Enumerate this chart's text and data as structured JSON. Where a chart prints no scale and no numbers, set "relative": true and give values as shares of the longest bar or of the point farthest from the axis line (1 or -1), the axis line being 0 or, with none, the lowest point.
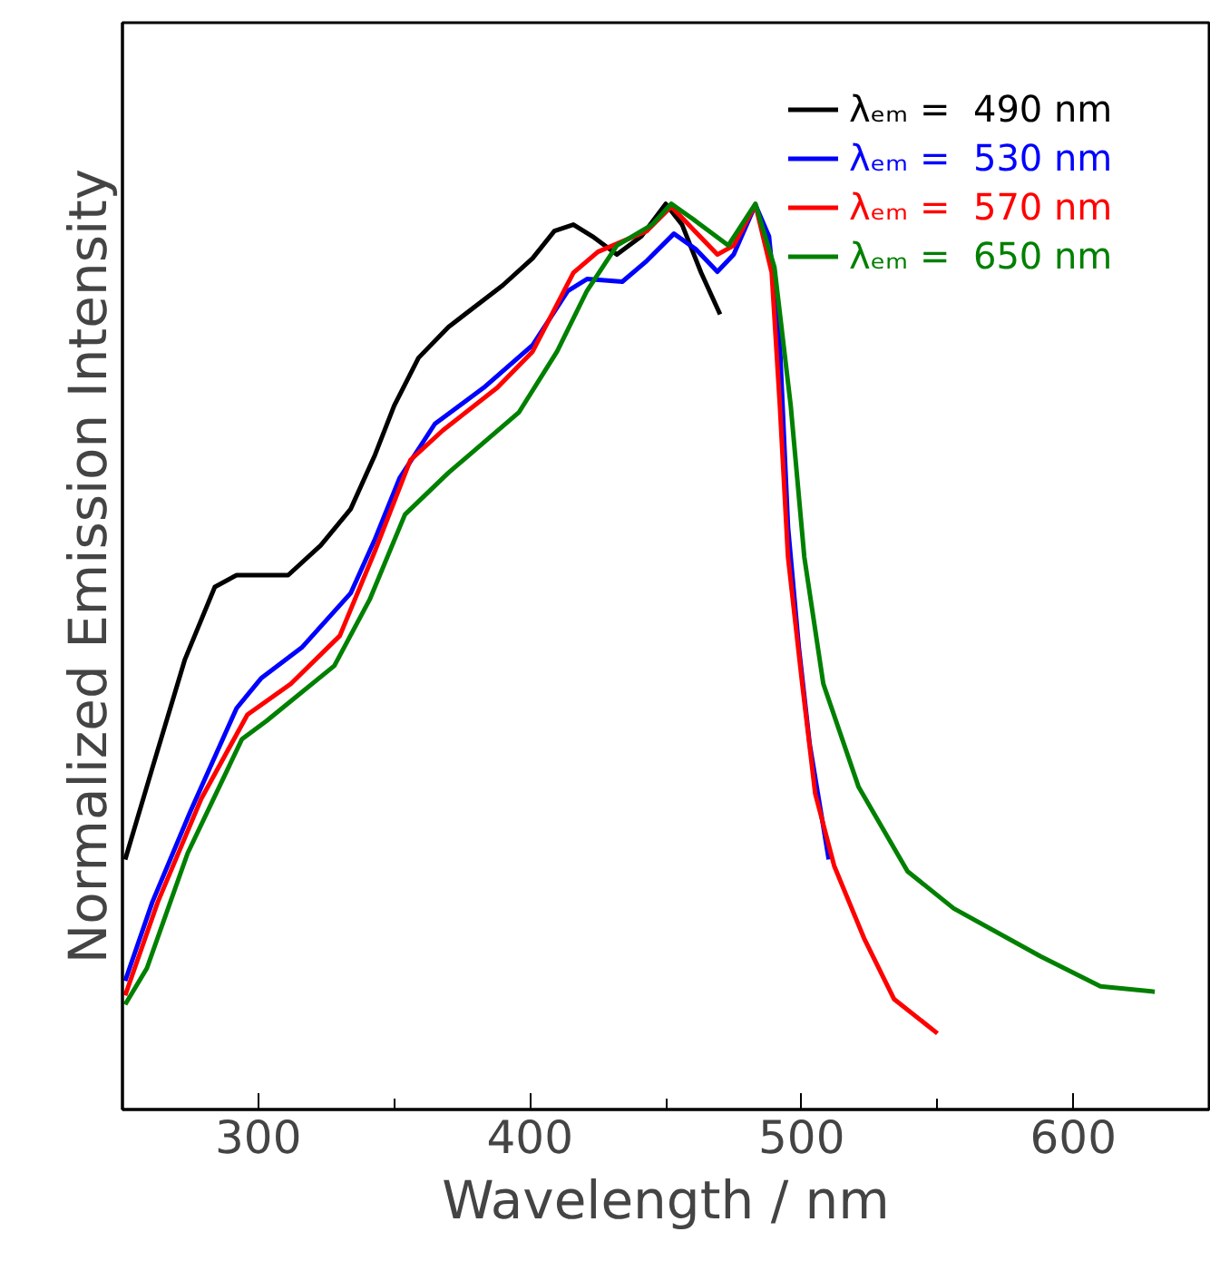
{
  "chart_data": {
    "type": "line",
    "xlabel": "Wavelength / nm",
    "ylabel": "Normalized Emission Intensity",
    "relative": true,
    "xlim": [
      250,
      650
    ],
    "xticks": [
      300,
      {
        "value": 350,
        "label": null
      },
      400,
      {
        "value": 450,
        "label": null
      },
      500,
      {
        "value": 550,
        "label": null
      },
      600
    ],
    "grid": false,
    "legend": "top right",
    "series": [
      {
        "name": "λₑₘ =  490 nm",
        "color": "#000000",
        "x": [
          251,
          261,
          273,
          284,
          292,
          311,
          323,
          334,
          343,
          350,
          359,
          370,
          390,
          401,
          409,
          416,
          423,
          432,
          441,
          450,
          456,
          463,
          470
        ],
        "values": [
          0.276,
          0.377,
          0.497,
          0.577,
          0.59,
          0.59,
          0.623,
          0.663,
          0.723,
          0.777,
          0.83,
          0.864,
          0.91,
          0.94,
          0.97,
          0.977,
          0.964,
          0.944,
          0.964,
          1.0,
          0.977,
          0.924,
          0.878
        ]
      },
      {
        "name": "λₑₘ =  530 nm",
        "color": "#0000ff",
        "x": [
          251,
          261,
          275,
          292,
          301,
          316,
          334,
          343,
          352,
          365,
          383,
          401,
          414,
          421,
          434,
          443,
          453,
          461,
          469,
          475,
          483,
          488,
          492,
          495,
          499,
          503,
          510
        ],
        "values": [
          0.142,
          0.229,
          0.329,
          0.443,
          0.476,
          0.51,
          0.57,
          0.63,
          0.697,
          0.757,
          0.797,
          0.844,
          0.904,
          0.917,
          0.914,
          0.937,
          0.967,
          0.95,
          0.925,
          0.944,
          0.999,
          0.964,
          0.844,
          0.643,
          0.51,
          0.403,
          0.276
        ]
      },
      {
        "name": "λₑₘ =  570 nm",
        "color": "#ff0000",
        "x": [
          251,
          263,
          279,
          296,
          312,
          330,
          343,
          356,
          368,
          388,
          401,
          416,
          425,
          443,
          452,
          469,
          475,
          483,
          489,
          492,
          495,
          500,
          505,
          512,
          523,
          534,
          550
        ],
        "values": [
          0.126,
          0.229,
          0.343,
          0.436,
          0.47,
          0.523,
          0.617,
          0.717,
          0.75,
          0.797,
          0.837,
          0.924,
          0.947,
          0.97,
          0.997,
          0.944,
          0.954,
          0.999,
          0.924,
          0.777,
          0.61,
          0.476,
          0.349,
          0.269,
          0.189,
          0.122,
          0.084
        ]
      },
      {
        "name": "λₑₘ =  650 nm",
        "color": "#008000",
        "x": [
          251,
          259,
          274,
          294,
          303,
          328,
          341,
          354,
          370,
          396,
          410,
          421,
          432,
          445,
          452,
          461,
          473,
          483,
          490,
          496,
          501,
          508,
          521,
          539,
          556,
          588,
          610,
          630
        ],
        "values": [
          0.116,
          0.156,
          0.283,
          0.409,
          0.429,
          0.49,
          0.563,
          0.657,
          0.703,
          0.77,
          0.837,
          0.904,
          0.954,
          0.977,
          1.0,
          0.981,
          0.954,
          1.0,
          0.93,
          0.777,
          0.61,
          0.47,
          0.356,
          0.263,
          0.222,
          0.169,
          0.136,
          0.13
        ]
      }
    ]
  }
}
